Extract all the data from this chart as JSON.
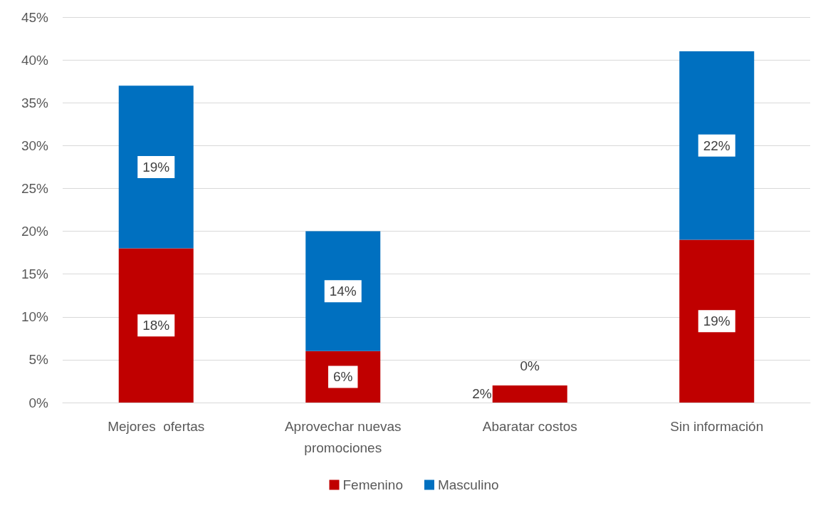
{
  "chart_data": {
    "type": "bar",
    "stacked": true,
    "categories": [
      "Mejores  ofertas",
      "Aprovechar nuevas\npromociones",
      "Abaratar costos",
      "Sin información"
    ],
    "series": [
      {
        "name": "Femenino",
        "color": "#c00000",
        "values": [
          18,
          6,
          2,
          19
        ],
        "value_labels": [
          "18%",
          "6%",
          "2%",
          "19%"
        ]
      },
      {
        "name": "Masculino",
        "color": "#0070c0",
        "values": [
          19,
          14,
          0,
          22
        ],
        "value_labels": [
          "19%",
          "14%",
          "0%",
          "22%"
        ]
      }
    ],
    "ylim": [
      0,
      45
    ],
    "yticks": [
      {
        "value": 0,
        "label": "0%"
      },
      {
        "value": 5,
        "label": "5%"
      },
      {
        "value": 10,
        "label": "10%"
      },
      {
        "value": 15,
        "label": "15%"
      },
      {
        "value": 20,
        "label": "20%"
      },
      {
        "value": 25,
        "label": "25%"
      },
      {
        "value": 30,
        "label": "30%"
      },
      {
        "value": 35,
        "label": "35%"
      },
      {
        "value": 40,
        "label": "40%"
      },
      {
        "value": 45,
        "label": "45%"
      }
    ],
    "grid": "y",
    "legend": "bottom"
  }
}
